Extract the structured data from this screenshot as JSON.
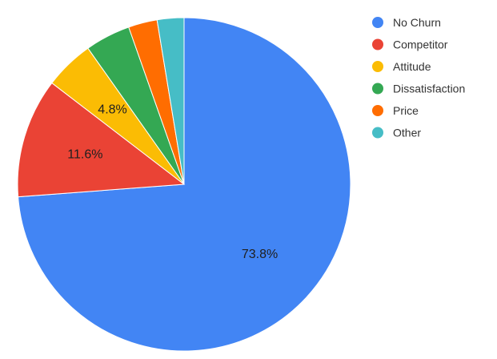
{
  "chart_data": {
    "type": "pie",
    "title": "",
    "start_angle_deg": 0,
    "direction": "clockwise",
    "legend_position": "right",
    "slices": [
      {
        "label": "No Churn",
        "value": 73.8,
        "color": "#4285f4",
        "data_label": "73.8%"
      },
      {
        "label": "Competitor",
        "value": 11.6,
        "color": "#ea4335",
        "data_label": "11.6%"
      },
      {
        "label": "Attitude",
        "value": 4.8,
        "color": "#fbbc04",
        "data_label": "4.8%"
      },
      {
        "label": "Dissatisfaction",
        "value": 4.4,
        "color": "#34a853",
        "data_label": ""
      },
      {
        "label": "Price",
        "value": 2.8,
        "color": "#ff6d01",
        "data_label": ""
      },
      {
        "label": "Other",
        "value": 2.6,
        "color": "#46bdc6",
        "data_label": ""
      }
    ]
  }
}
